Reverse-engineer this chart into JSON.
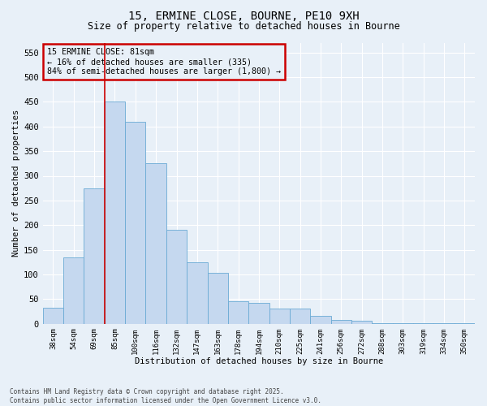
{
  "title_line1": "15, ERMINE CLOSE, BOURNE, PE10 9XH",
  "title_line2": "Size of property relative to detached houses in Bourne",
  "xlabel": "Distribution of detached houses by size in Bourne",
  "ylabel": "Number of detached properties",
  "categories": [
    "38sqm",
    "54sqm",
    "69sqm",
    "85sqm",
    "100sqm",
    "116sqm",
    "132sqm",
    "147sqm",
    "163sqm",
    "178sqm",
    "194sqm",
    "210sqm",
    "225sqm",
    "241sqm",
    "256sqm",
    "272sqm",
    "288sqm",
    "303sqm",
    "319sqm",
    "334sqm",
    "350sqm"
  ],
  "values": [
    33,
    135,
    275,
    450,
    410,
    325,
    190,
    125,
    103,
    45,
    43,
    30,
    30,
    16,
    7,
    6,
    2,
    1,
    1,
    1,
    2
  ],
  "bar_color": "#c5d8ef",
  "bar_edge_color": "#6aaad4",
  "vline_x": 2.5,
  "vline_color": "#cc0000",
  "annotation_text": "15 ERMINE CLOSE: 81sqm\n← 16% of detached houses are smaller (335)\n84% of semi-detached houses are larger (1,800) →",
  "annotation_box_color": "#cc0000",
  "ylim": [
    0,
    570
  ],
  "yticks": [
    0,
    50,
    100,
    150,
    200,
    250,
    300,
    350,
    400,
    450,
    500,
    550
  ],
  "background_color": "#e8f0f8",
  "grid_color": "#ffffff",
  "footer_line1": "Contains HM Land Registry data © Crown copyright and database right 2025.",
  "footer_line2": "Contains public sector information licensed under the Open Government Licence v3.0."
}
